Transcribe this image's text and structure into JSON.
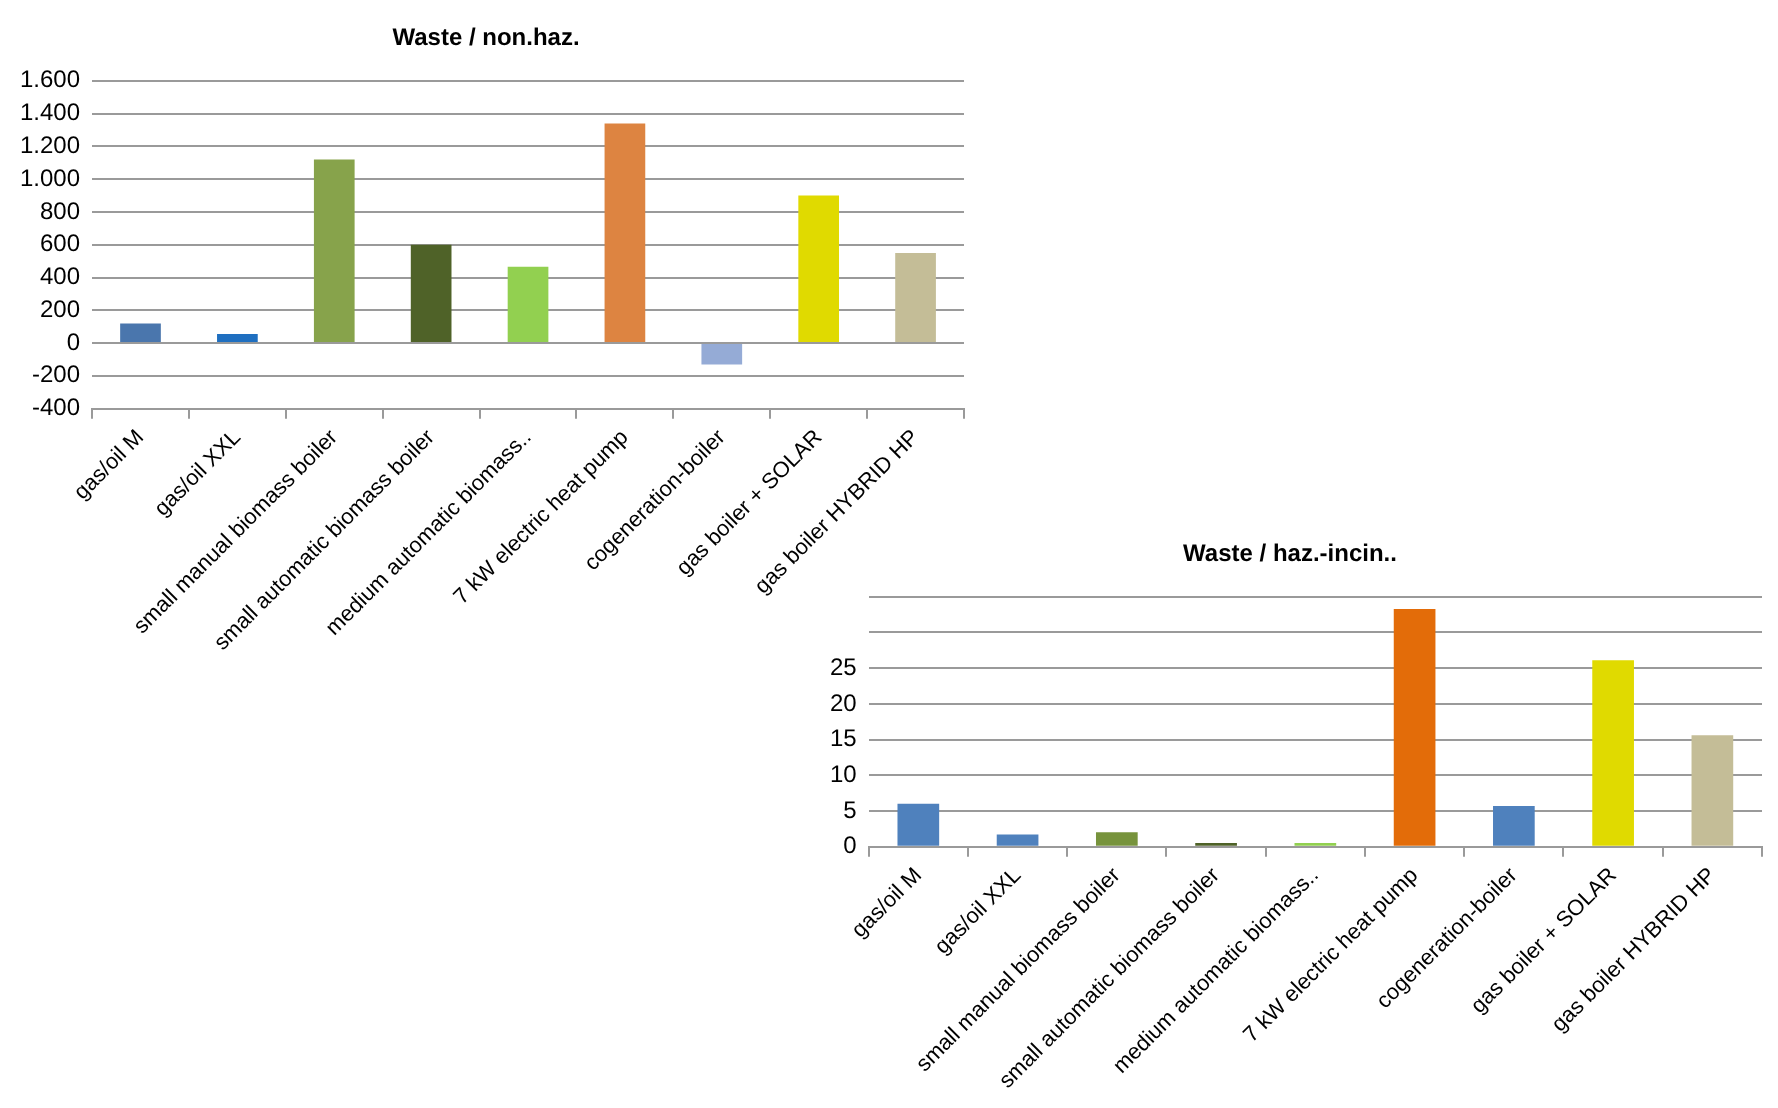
{
  "chart_data": [
    {
      "type": "bar",
      "title": "Waste / non.haz.",
      "categories": [
        "gas/oil M",
        "gas/oil XXL",
        "small manual biomass boiler",
        "small automatic biomass boiler",
        "medium automatic biomass..",
        "7 kW electric heat pump",
        "cogeneration-boiler",
        "gas boiler + SOLAR",
        "gas boiler HYBRID HP"
      ],
      "values": [
        120,
        55,
        1120,
        600,
        465,
        1340,
        -130,
        900,
        550
      ],
      "colors": [
        "#4a76ad",
        "#1f6fc0",
        "#87a34b",
        "#4f6228",
        "#92d050",
        "#dd8441",
        "#95abd6",
        "#e0da00",
        "#c4bd97"
      ],
      "ylim": [
        -400,
        1600
      ],
      "yticks": [
        -400,
        -200,
        0,
        200,
        400,
        600,
        800,
        {
          "value": 1000,
          "label": "1.000"
        },
        {
          "value": 1200,
          "label": "1.200"
        },
        {
          "value": 1400,
          "label": "1.400"
        },
        {
          "value": 1600,
          "label": "1.600"
        }
      ],
      "grid": "y",
      "legend": false
    },
    {
      "type": "bar",
      "title": "Waste / haz.-incin..",
      "categories": [
        "gas/oil M",
        "gas/oil XXL",
        "small manual biomass boiler",
        "small automatic biomass boiler",
        "medium automatic biomass..",
        "7 kW electric heat pump",
        "cogeneration-boiler",
        "gas boiler + SOLAR",
        "gas boiler HYBRID HP"
      ],
      "values": [
        6.0,
        1.7,
        2.0,
        0.5,
        0.5,
        33.3,
        5.7,
        26.1,
        15.6
      ],
      "colors": [
        "#4f81bd",
        "#4f81bd",
        "#77933c",
        "#4f6228",
        "#92d050",
        "#e36c09",
        "#4f81bd",
        "#e0da00",
        "#c4bd97"
      ],
      "ylim": [
        0,
        35
      ],
      "yticks": [
        0,
        5,
        10,
        15,
        20,
        25,
        {
          "value": 30,
          "label": null
        },
        {
          "value": 35,
          "label": null
        }
      ],
      "grid": "y",
      "legend": false
    }
  ]
}
